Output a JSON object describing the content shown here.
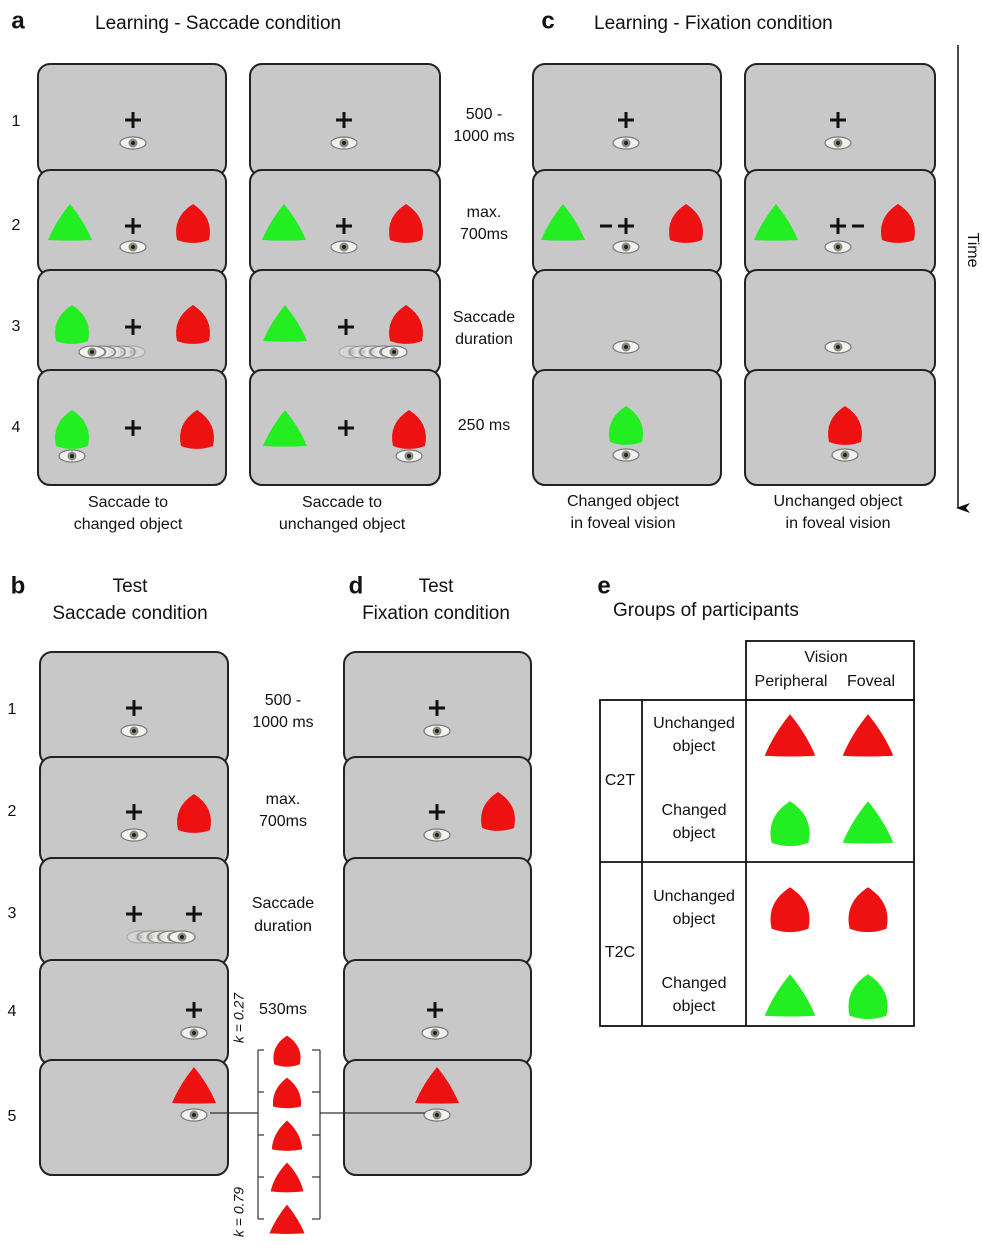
{
  "panels": {
    "a": {
      "letter": "a",
      "title": "Learning - Saccade condition",
      "rows": [
        "1",
        "2",
        "3",
        "4"
      ],
      "timings": [
        [
          "500 -",
          "1000 ms"
        ],
        [
          "max.",
          "700ms"
        ],
        [
          "Saccade",
          "duration"
        ],
        [
          "250 ms"
        ]
      ],
      "captions": [
        [
          "Saccade to",
          "changed object"
        ],
        [
          "Saccade to",
          "unchanged object"
        ]
      ]
    },
    "c": {
      "letter": "c",
      "title": "Learning - Fixation condition",
      "captions": [
        [
          "Changed object",
          "in foveal vision"
        ],
        [
          "Unchanged object",
          "in foveal vision"
        ]
      ],
      "time_label": "Time"
    },
    "b": {
      "letter": "b",
      "title": [
        "Test",
        "Saccade condition"
      ],
      "rows": [
        "1",
        "2",
        "3",
        "4",
        "5"
      ],
      "timings": [
        [
          "500 -",
          "1000 ms"
        ],
        [
          "max.",
          "700ms"
        ],
        [
          "Saccade",
          "duration"
        ],
        [
          "530ms"
        ]
      ],
      "k_labels": [
        "k = 0.27",
        "k = 0.79"
      ]
    },
    "d": {
      "letter": "d",
      "title": [
        "Test",
        "Fixation condition"
      ]
    },
    "e": {
      "letter": "e",
      "title": "Groups of participants",
      "header": {
        "group": "Vision",
        "columns": [
          "Peripheral",
          "Foveal"
        ]
      },
      "groups": [
        {
          "name": "C2T",
          "rows": [
            [
              "Unchanged",
              "object"
            ],
            [
              "Changed",
              "object"
            ]
          ]
        },
        {
          "name": "T2C",
          "rows": [
            [
              "Unchanged",
              "object"
            ],
            [
              "Changed",
              "object"
            ]
          ]
        }
      ]
    }
  }
}
